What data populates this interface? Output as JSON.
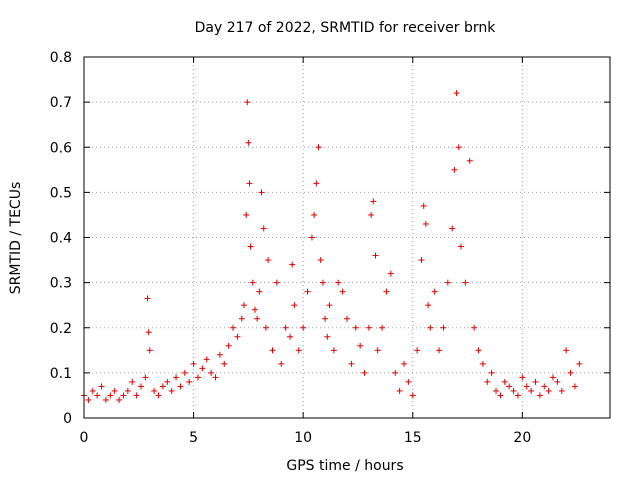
{
  "chart_data": {
    "type": "scatter",
    "title": "Day 217 of 2022, SRMTID for receiver brnk",
    "xlabel": "GPS time / hours",
    "ylabel": "SRMTID / TECUs",
    "xlim": [
      0,
      24
    ],
    "ylim": [
      0,
      0.8
    ],
    "xticks": [
      0,
      5,
      10,
      15,
      20
    ],
    "xtick_labels": [
      "0",
      "5",
      "10",
      "15",
      "20"
    ],
    "yticks": [
      0,
      0.1,
      0.2,
      0.3,
      0.4,
      0.5,
      0.6,
      0.7,
      0.8
    ],
    "ytick_labels": [
      "0",
      "0.1",
      "0.2",
      "0.3",
      "0.4",
      "0.5",
      "0.6",
      "0.7",
      "0.8"
    ],
    "grid": true,
    "marker": "+",
    "color": "#e00000",
    "series": [
      {
        "name": "SRMTID",
        "x": [
          0.0,
          0.2,
          0.4,
          0.6,
          0.8,
          1.0,
          1.2,
          1.4,
          1.6,
          1.8,
          2.0,
          2.2,
          2.4,
          2.6,
          2.8,
          2.9,
          2.95,
          3.0,
          3.2,
          3.4,
          3.6,
          3.8,
          4.0,
          4.2,
          4.4,
          4.6,
          4.8,
          5.0,
          5.2,
          5.4,
          5.6,
          5.8,
          6.0,
          6.2,
          6.4,
          6.6,
          6.8,
          7.0,
          7.2,
          7.3,
          7.4,
          7.45,
          7.5,
          7.55,
          7.6,
          7.7,
          7.8,
          7.9,
          8.0,
          8.1,
          8.2,
          8.3,
          8.4,
          8.6,
          8.8,
          9.0,
          9.2,
          9.4,
          9.5,
          9.6,
          9.8,
          10.0,
          10.2,
          10.4,
          10.5,
          10.6,
          10.7,
          10.8,
          10.9,
          11.0,
          11.1,
          11.2,
          11.4,
          11.6,
          11.8,
          12.0,
          12.2,
          12.4,
          12.6,
          12.8,
          13.0,
          13.1,
          13.2,
          13.3,
          13.4,
          13.6,
          13.8,
          14.0,
          14.2,
          14.4,
          14.6,
          14.8,
          15.0,
          15.2,
          15.4,
          15.5,
          15.6,
          15.7,
          15.8,
          16.0,
          16.2,
          16.4,
          16.6,
          16.8,
          16.9,
          17.0,
          17.1,
          17.2,
          17.4,
          17.6,
          17.8,
          18.0,
          18.2,
          18.4,
          18.6,
          18.8,
          19.0,
          19.2,
          19.4,
          19.6,
          19.8,
          20.0,
          20.2,
          20.4,
          20.6,
          20.8,
          21.0,
          21.2,
          21.4,
          21.6,
          21.8,
          22.0,
          22.2,
          22.4,
          22.6
        ],
        "y": [
          0.05,
          0.04,
          0.06,
          0.05,
          0.07,
          0.04,
          0.05,
          0.06,
          0.04,
          0.05,
          0.06,
          0.08,
          0.05,
          0.07,
          0.09,
          0.265,
          0.19,
          0.15,
          0.06,
          0.05,
          0.07,
          0.08,
          0.06,
          0.09,
          0.07,
          0.1,
          0.08,
          0.12,
          0.09,
          0.11,
          0.13,
          0.1,
          0.09,
          0.14,
          0.12,
          0.16,
          0.2,
          0.18,
          0.22,
          0.25,
          0.45,
          0.7,
          0.61,
          0.52,
          0.38,
          0.3,
          0.24,
          0.22,
          0.28,
          0.5,
          0.42,
          0.2,
          0.35,
          0.15,
          0.3,
          0.12,
          0.2,
          0.18,
          0.34,
          0.25,
          0.15,
          0.2,
          0.28,
          0.4,
          0.45,
          0.52,
          0.6,
          0.35,
          0.3,
          0.22,
          0.18,
          0.25,
          0.15,
          0.3,
          0.28,
          0.22,
          0.12,
          0.2,
          0.16,
          0.1,
          0.2,
          0.45,
          0.48,
          0.36,
          0.15,
          0.2,
          0.28,
          0.32,
          0.1,
          0.06,
          0.12,
          0.08,
          0.05,
          0.15,
          0.35,
          0.47,
          0.43,
          0.25,
          0.2,
          0.28,
          0.15,
          0.2,
          0.3,
          0.42,
          0.55,
          0.72,
          0.6,
          0.38,
          0.3,
          0.57,
          0.2,
          0.15,
          0.12,
          0.08,
          0.1,
          0.06,
          0.05,
          0.08,
          0.07,
          0.06,
          0.05,
          0.09,
          0.07,
          0.06,
          0.08,
          0.05,
          0.07,
          0.06,
          0.09,
          0.08,
          0.06,
          0.15,
          0.1,
          0.07,
          0.12
        ]
      }
    ]
  }
}
